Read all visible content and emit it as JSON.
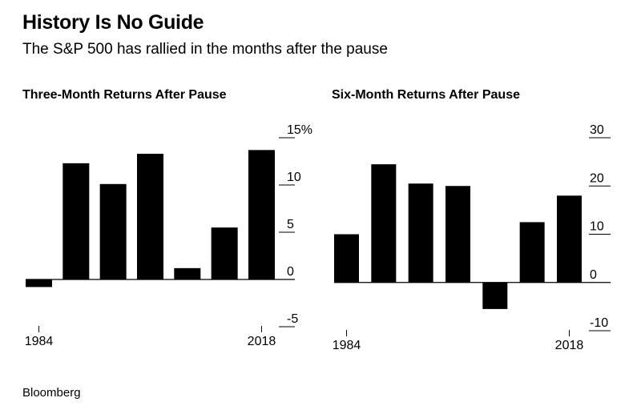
{
  "title": "History Is No Guide",
  "subtitle": "The S&P 500 has rallied in the months after the pause",
  "source": "Bloomberg",
  "chart_data": [
    {
      "type": "bar",
      "title": "Three-Month Returns After Pause",
      "categories": [
        "1984",
        "",
        "",
        "",
        "",
        "",
        "2018"
      ],
      "values": [
        -0.8,
        12.3,
        10.1,
        13.3,
        1.2,
        5.5,
        13.7
      ],
      "ylim": [
        -5,
        15
      ],
      "yticks": [
        15,
        10,
        5,
        0,
        -5
      ],
      "ytick_labels": [
        "15%",
        "10",
        "5",
        "0",
        "-5"
      ],
      "xtick_labels": [
        "1984",
        "2018"
      ],
      "xlabel": "",
      "ylabel": ""
    },
    {
      "type": "bar",
      "title": "Six-Month Returns After Pause",
      "categories": [
        "1984",
        "",
        "",
        "",
        "",
        "",
        "2018"
      ],
      "values": [
        10,
        24.5,
        20.5,
        20,
        -5.5,
        12.5,
        18
      ],
      "ylim": [
        -10,
        30
      ],
      "yticks": [
        30,
        20,
        10,
        0,
        -10
      ],
      "ytick_labels": [
        "30",
        "20",
        "10",
        "0",
        "-10"
      ],
      "xtick_labels": [
        "1984",
        "2018"
      ],
      "xlabel": "",
      "ylabel": ""
    }
  ]
}
